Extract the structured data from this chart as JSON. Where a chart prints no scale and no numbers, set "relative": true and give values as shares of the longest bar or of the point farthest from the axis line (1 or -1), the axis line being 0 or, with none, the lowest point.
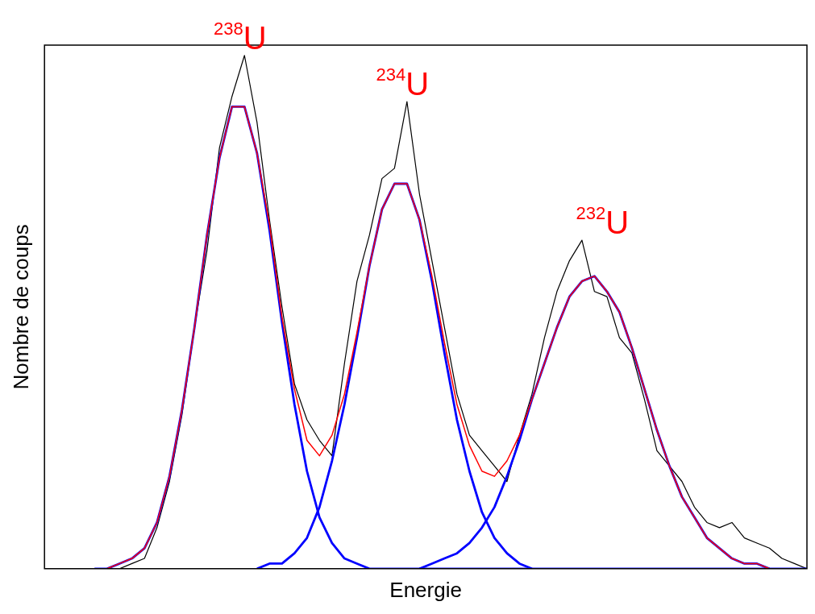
{
  "chart_data": {
    "type": "line",
    "relative": true,
    "xlabel": "Energie",
    "ylabel": "Nombre de coups",
    "categories": [
      null,
      null,
      null,
      null,
      null,
      null,
      null,
      null,
      null,
      null,
      null,
      null,
      null,
      null,
      null,
      null,
      null,
      null,
      null,
      null,
      null,
      null,
      null,
      null,
      null,
      null,
      null,
      null,
      null,
      null,
      null,
      null,
      null,
      null,
      null,
      null,
      null,
      null,
      null,
      null,
      null,
      null,
      null,
      null,
      null,
      null,
      null,
      null,
      null,
      null,
      null,
      null,
      null,
      null,
      null,
      null,
      null,
      null,
      null,
      null,
      null,
      null
    ],
    "series": [
      {
        "color": "#000000",
        "values": [
          0,
          0,
          0,
          0,
          0,
          0,
          0,
          0.01,
          0.02,
          0.08,
          0.17,
          0.3,
          0.47,
          0.62,
          0.82,
          0.92,
          1.0,
          0.87,
          0.68,
          0.51,
          0.36,
          0.29,
          0.25,
          0.22,
          0.4,
          0.56,
          0.65,
          0.76,
          0.78,
          0.91,
          0.73,
          0.6,
          0.47,
          0.34,
          0.26,
          0.23,
          0.2,
          0.17,
          0.26,
          0.34,
          0.45,
          0.54,
          0.6,
          0.64,
          0.54,
          0.53,
          0.45,
          0.42,
          0.33,
          0.23,
          0.2,
          0.17,
          0.12,
          0.09,
          0.08,
          0.09,
          0.06,
          0.05,
          0.04,
          0.02,
          0.01,
          0
        ]
      },
      {
        "color": "#0000ff",
        "values": [
          null,
          null,
          null,
          null,
          0,
          0,
          0.01,
          0.02,
          0.04,
          0.09,
          0.18,
          0.31,
          0.47,
          0.65,
          0.8,
          0.9,
          0.9,
          0.81,
          0.66,
          0.48,
          0.32,
          0.19,
          0.1,
          0.05,
          0.02,
          0.01,
          0,
          0,
          0,
          0,
          0,
          0,
          0,
          0,
          0,
          0,
          0,
          0,
          0,
          0,
          0,
          0,
          0,
          0,
          0,
          0,
          0,
          0,
          0,
          0,
          0,
          0,
          0,
          0,
          0,
          0,
          0,
          0,
          0,
          0,
          0,
          0
        ]
      },
      {
        "color": "#0000ff",
        "values": [
          null,
          null,
          null,
          null,
          null,
          null,
          null,
          null,
          null,
          null,
          null,
          null,
          null,
          null,
          null,
          null,
          null,
          0,
          0.01,
          0.01,
          0.03,
          0.06,
          0.12,
          0.21,
          0.32,
          0.45,
          0.59,
          0.7,
          0.75,
          0.75,
          0.68,
          0.56,
          0.42,
          0.29,
          0.19,
          0.11,
          0.06,
          0.03,
          0.01,
          0,
          null,
          null,
          null,
          null,
          null,
          null,
          null,
          null,
          null,
          null,
          null,
          null,
          null,
          null,
          null,
          null,
          null,
          null,
          null,
          null,
          null,
          null
        ]
      },
      {
        "color": "#0000ff",
        "values": [
          null,
          null,
          null,
          null,
          null,
          null,
          null,
          null,
          null,
          null,
          null,
          null,
          null,
          null,
          null,
          null,
          null,
          null,
          null,
          null,
          null,
          null,
          null,
          null,
          null,
          null,
          null,
          null,
          null,
          null,
          0,
          0.01,
          0.02,
          0.03,
          0.05,
          0.08,
          0.12,
          0.18,
          0.25,
          0.33,
          0.4,
          0.47,
          0.53,
          0.56,
          0.57,
          0.54,
          0.5,
          0.43,
          0.35,
          0.27,
          0.2,
          0.14,
          0.1,
          0.06,
          0.04,
          0.02,
          0.01,
          0.01,
          0,
          null,
          null,
          null
        ]
      },
      {
        "color": "#ff0000",
        "values": [
          null,
          null,
          null,
          null,
          null,
          0,
          0.01,
          0.02,
          0.04,
          0.09,
          0.18,
          0.31,
          0.47,
          0.65,
          0.8,
          0.9,
          0.9,
          0.81,
          0.67,
          0.49,
          0.35,
          0.25,
          0.22,
          0.26,
          0.34,
          0.46,
          0.59,
          0.7,
          0.75,
          0.75,
          0.68,
          0.57,
          0.44,
          0.32,
          0.24,
          0.19,
          0.18,
          0.21,
          0.26,
          0.33,
          0.4,
          0.47,
          0.53,
          0.56,
          0.57,
          0.54,
          0.5,
          0.43,
          0.35,
          0.27,
          0.2,
          0.14,
          0.1,
          0.06,
          0.04,
          0.02,
          0.01,
          0.01,
          0,
          null,
          null,
          null
        ]
      }
    ],
    "annotations": [
      "$^{238}$U",
      "$^{234}$U",
      "$^{232}$U"
    ]
  }
}
